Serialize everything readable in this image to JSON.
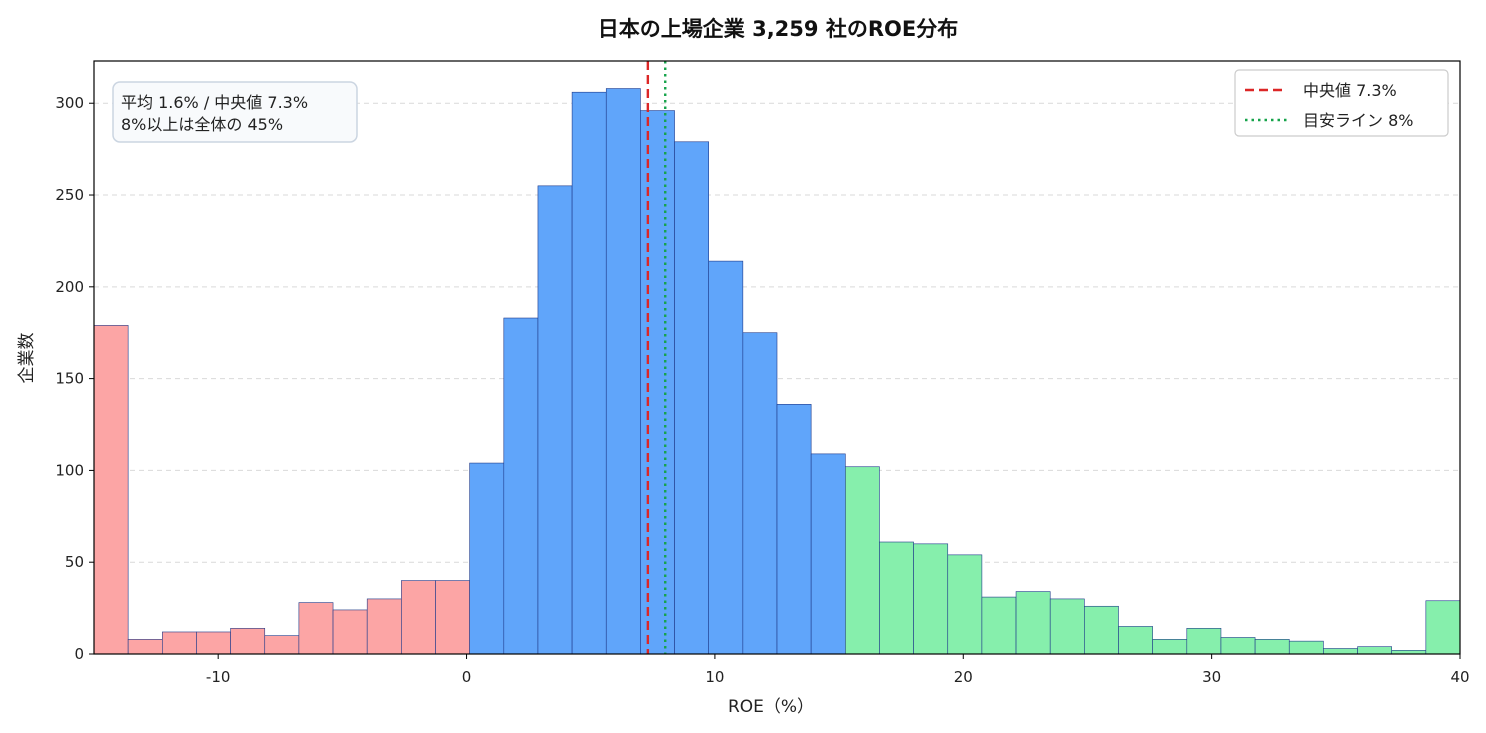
{
  "chart_data": {
    "type": "bar",
    "title": "日本の上場企業 3,259 社のROE分布",
    "xlabel": "ROE（%）",
    "ylabel": "企業数",
    "xlim": [
      -15,
      40
    ],
    "ylim": [
      0,
      323
    ],
    "xticks": [
      -10,
      0,
      10,
      20,
      30,
      40
    ],
    "xtick_labels": [
      "-10",
      "0",
      "10",
      "20",
      "30",
      "40"
    ],
    "yticks": [
      0,
      50,
      100,
      150,
      200,
      250,
      300
    ],
    "ytick_labels": [
      "0",
      "50",
      "100",
      "150",
      "200",
      "250",
      "300"
    ],
    "grid": "y-dashed",
    "bin_width": 1.375,
    "bins_start": -15,
    "counts": [
      179,
      8,
      12,
      12,
      14,
      10,
      28,
      24,
      30,
      40,
      40,
      104,
      183,
      255,
      306,
      308,
      296,
      279,
      214,
      175,
      136,
      109,
      102,
      61,
      60,
      54,
      31,
      34,
      30,
      26,
      15,
      8,
      14,
      9,
      8,
      7,
      3,
      4,
      2,
      29
    ],
    "color_groups": [
      {
        "label": "below-0",
        "from": -15,
        "to": 0,
        "color": "#fca5a5"
      },
      {
        "label": "0-to-15",
        "from": 0,
        "to": 15.25,
        "color": "#60a5fa"
      },
      {
        "label": "above-15",
        "from": 15.25,
        "to": 40,
        "color": "#86efac"
      }
    ],
    "edge_color": "#1e3a8a",
    "reference_lines": [
      {
        "name": "中央値 7.3%",
        "x": 7.3,
        "style": "dashed",
        "color": "#dc2626"
      },
      {
        "name": "目安ライン 8%",
        "x": 8,
        "style": "dotted",
        "color": "#16a34a"
      }
    ],
    "legend_position": "top-right",
    "annotation": {
      "position": "top-left",
      "lines": [
        "平均 1.6% / 中央値 7.3%",
        "8%以上は全体の 45%"
      ]
    }
  }
}
